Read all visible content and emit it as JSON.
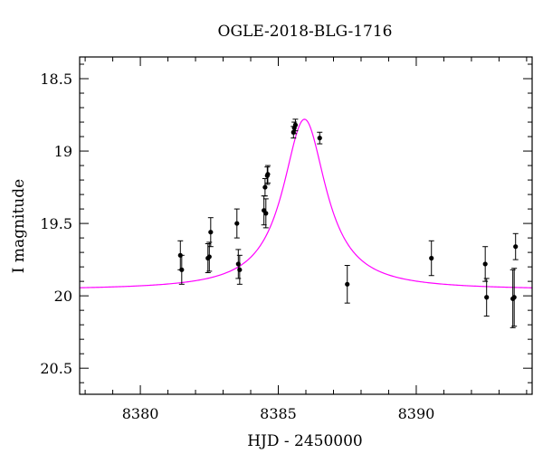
{
  "chart_data": {
    "type": "scatter",
    "title": "OGLE-2018-BLG-1716",
    "xlabel": "HJD - 2450000",
    "ylabel": "I magnitude",
    "xlim": [
      8377.8,
      8394.2
    ],
    "ylim": [
      18.35,
      20.68
    ],
    "y_inverted": true,
    "grid": false,
    "x_ticks": [
      8380,
      8385,
      8390
    ],
    "x_tick_labels": [
      "8380",
      "8385",
      "8390"
    ],
    "y_ticks": [
      18.5,
      19,
      19.5,
      20,
      20.5
    ],
    "y_tick_labels": [
      "18.5",
      "19",
      "19.5",
      "20",
      "20.5"
    ],
    "colors": {
      "model": "#ff00ff",
      "points": "#000000"
    },
    "series": [
      {
        "type": "scatter",
        "x": [
          8381.45,
          8381.5,
          8382.45,
          8382.5,
          8382.55,
          8383.5,
          8383.55,
          8383.6,
          8384.48,
          8384.52,
          8384.55,
          8384.6,
          8384.62,
          8385.55,
          8385.58,
          8385.62,
          8386.5,
          8387.5,
          8390.55,
          8392.5,
          8392.55,
          8393.5,
          8393.55,
          8393.6
        ],
        "y": [
          19.72,
          19.82,
          19.74,
          19.73,
          19.56,
          19.5,
          19.78,
          19.82,
          19.41,
          19.25,
          19.43,
          19.17,
          19.16,
          18.87,
          18.84,
          18.82,
          18.91,
          19.92,
          19.74,
          19.78,
          20.01,
          20.02,
          20.01,
          19.66
        ],
        "yerr": [
          0.1,
          0.1,
          0.1,
          0.1,
          0.1,
          0.1,
          0.1,
          0.1,
          0.1,
          0.06,
          0.1,
          0.06,
          0.06,
          0.04,
          0.04,
          0.04,
          0.04,
          0.13,
          0.12,
          0.12,
          0.13,
          0.2,
          0.2,
          0.09
        ]
      },
      {
        "type": "line",
        "model": {
          "t0": 8385.95,
          "width": 0.95,
          "baseline_mag": 19.96,
          "peak_mag": 18.78
        }
      }
    ]
  }
}
